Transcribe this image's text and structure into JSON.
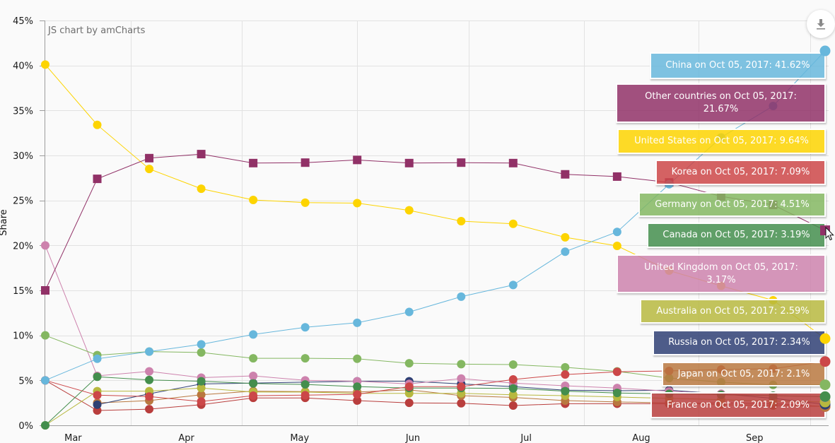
{
  "chart_data": {
    "type": "line",
    "title": "",
    "xlabel": "",
    "ylabel": "Share",
    "credit": "JS chart by amCharts",
    "ylim": [
      0,
      45
    ],
    "grid": true,
    "legend": "none",
    "ytick_values": [
      0,
      5,
      10,
      15,
      20,
      25,
      30,
      35,
      40,
      45
    ],
    "ytick_labels": [
      "0%",
      "5%",
      "10%",
      "15%",
      "20%",
      "25%",
      "30%",
      "35%",
      "40%",
      "45%"
    ],
    "xtick_labels": [
      "Mar",
      "Apr",
      "May",
      "Jun",
      "Jul",
      "Aug",
      "Sep"
    ],
    "x": [
      "2017-03-09",
      "2017-03-23",
      "2017-04-06",
      "2017-04-20",
      "2017-05-04",
      "2017-05-18",
      "2017-06-01",
      "2017-06-15",
      "2017-06-29",
      "2017-07-13",
      "2017-07-27",
      "2017-08-10",
      "2017-08-24",
      "2017-09-07",
      "2017-09-21",
      "2017-10-05"
    ],
    "series": [
      {
        "name": "China",
        "color": "#67b7dc",
        "marker": "circle",
        "values": [
          5.0,
          7.4,
          8.2,
          9.0,
          10.1,
          10.9,
          11.4,
          12.6,
          14.3,
          15.6,
          19.3,
          21.5,
          26.8,
          32.0,
          35.5,
          41.62
        ],
        "tooltip_suffix": " on Oct 05, 2017: 41.62%"
      },
      {
        "name": "Other countries",
        "color": "#913167",
        "marker": "square",
        "values": [
          15.0,
          27.4,
          29.7,
          30.15,
          29.15,
          29.2,
          29.5,
          29.15,
          29.2,
          29.15,
          27.9,
          27.65,
          27.0,
          25.45,
          24.5,
          21.67
        ],
        "tooltip_suffix": " on Oct 05, 2017: 21.67%"
      },
      {
        "name": "United States",
        "color": "#fdd400",
        "marker": "circle",
        "values": [
          40.1,
          33.4,
          28.5,
          26.3,
          25.05,
          24.75,
          24.7,
          23.9,
          22.7,
          22.4,
          20.9,
          19.95,
          17.2,
          15.5,
          13.9,
          9.64
        ],
        "tooltip_suffix": " on Oct 05, 2017: 9.64%"
      },
      {
        "name": "Korea",
        "color": "#cc4748",
        "marker": "circle",
        "values": [
          5.0,
          3.35,
          3.2,
          2.65,
          3.3,
          3.35,
          3.45,
          4.3,
          4.3,
          5.1,
          5.65,
          5.95,
          6.05,
          6.2,
          6.3,
          7.09
        ],
        "tooltip_suffix": " on Oct 05, 2017: 7.09%"
      },
      {
        "name": "Germany",
        "color": "#84b761",
        "marker": "circle",
        "values": [
          10.0,
          7.8,
          8.2,
          8.1,
          7.45,
          7.45,
          7.4,
          6.9,
          6.8,
          6.75,
          6.45,
          6.0,
          5.25,
          4.8,
          4.5,
          4.51
        ],
        "tooltip_suffix": " on Oct 05, 2017: 4.51%"
      },
      {
        "name": "Canada",
        "color": "#448e4d",
        "marker": "circle",
        "values": [
          0,
          5.4,
          5.05,
          4.9,
          4.65,
          4.55,
          4.3,
          4.15,
          4.15,
          4.1,
          3.8,
          3.6,
          3.5,
          3.4,
          3.3,
          3.19
        ],
        "tooltip_suffix": " on Oct 05, 2017: 3.19%"
      },
      {
        "name": "United Kingdom",
        "color": "#cd82ad",
        "marker": "circle",
        "values": [
          20.0,
          5.5,
          6.0,
          5.3,
          5.5,
          5.0,
          4.9,
          4.6,
          5.2,
          4.7,
          4.4,
          4.15,
          3.8,
          3.5,
          3.3,
          3.17
        ],
        "tooltip_suffix": " on Oct 05, 2017: 3.17%"
      },
      {
        "name": "Australia",
        "color": "#b7b83f",
        "marker": "circle",
        "values": [
          0,
          3.8,
          3.8,
          4.15,
          3.7,
          3.7,
          3.55,
          3.55,
          3.55,
          3.4,
          3.3,
          3.15,
          3.0,
          2.85,
          2.7,
          2.59
        ],
        "tooltip_suffix": " on Oct 05, 2017: 2.59%"
      },
      {
        "name": "Russia",
        "color": "#2f4074",
        "marker": "circle",
        "values": [
          null,
          2.3,
          3.5,
          4.6,
          4.7,
          4.8,
          4.9,
          4.9,
          4.6,
          4.3,
          3.9,
          3.85,
          3.9,
          3.5,
          3.0,
          2.34
        ],
        "tooltip_suffix": " on Oct 05, 2017: 2.34%"
      },
      {
        "name": "Japan",
        "color": "#b9783f",
        "marker": "circle",
        "values": [
          null,
          2.5,
          2.75,
          3.4,
          3.8,
          3.75,
          3.7,
          3.95,
          3.3,
          3.1,
          2.75,
          2.6,
          2.5,
          2.3,
          2.2,
          2.1
        ],
        "tooltip_suffix": " on Oct 05, 2017: 2.1%"
      },
      {
        "name": "France",
        "color": "#b93e3d",
        "marker": "circle",
        "values": [
          5.0,
          1.65,
          1.8,
          2.3,
          3.05,
          3.05,
          2.75,
          2.5,
          2.45,
          2.2,
          2.4,
          2.4,
          2.4,
          2.5,
          2.4,
          2.09
        ],
        "tooltip_suffix": " on Oct 05, 2017: 2.09%"
      }
    ]
  },
  "toolbar": {
    "export_icon": "download-icon"
  },
  "pointer": {
    "icon": "mouse-cursor-icon"
  }
}
